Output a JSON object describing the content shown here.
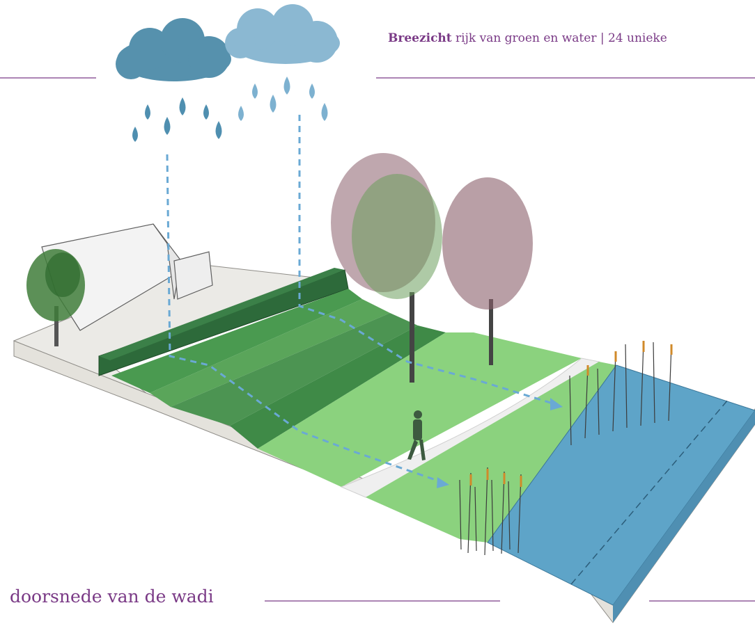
{
  "header": {
    "brand": "Breezicht",
    "tagline": "rijk van groen en water | 24 unieke"
  },
  "caption": "doorsnede van de wadi",
  "colors": {
    "accent": "#7a3a86",
    "water": "#5ea4c8",
    "grass_light": "#8bd27e",
    "grass_mid": "#5aa55a",
    "grass_dark": "#2f7a3d",
    "base": "#e4e2dc",
    "cloud_dark": "#5691ad",
    "cloud_light": "#8bb8d2"
  },
  "icons": [
    "cloud-icon",
    "raindrop-icon",
    "tree-icon",
    "reed-icon",
    "person-icon",
    "house-icon"
  ]
}
